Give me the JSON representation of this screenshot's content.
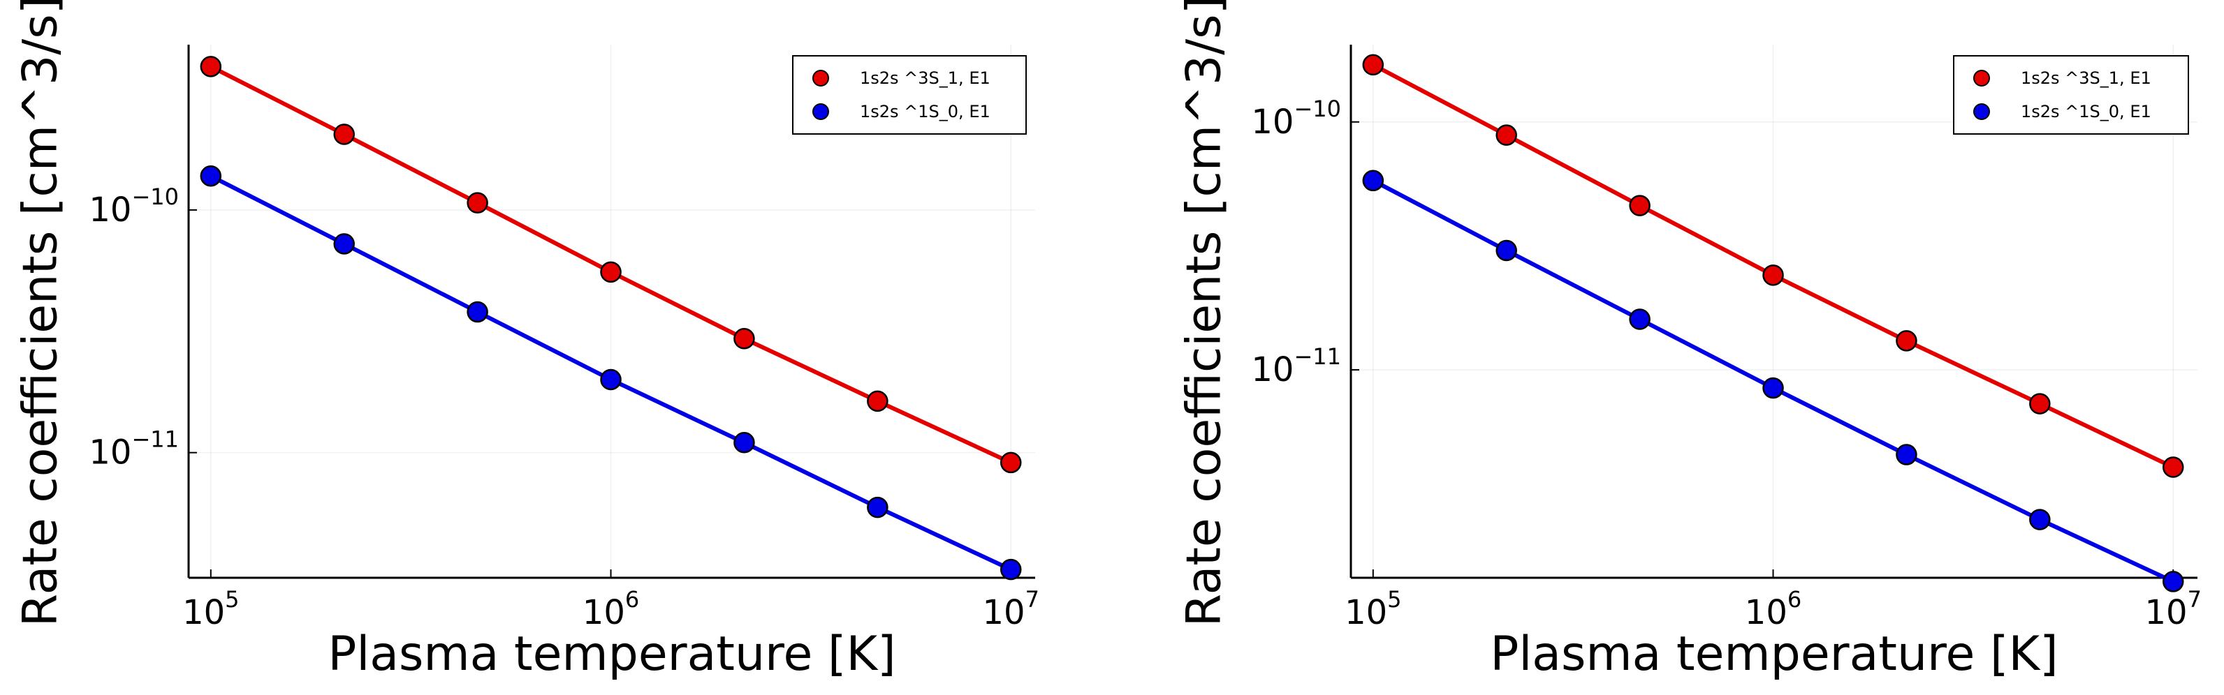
{
  "chart_data": [
    {
      "type": "line",
      "scale": {
        "x": "log",
        "y": "log"
      },
      "title": "",
      "xlabel": "Plasma temperature [K]",
      "ylabel": "Rate coefficients [cm^3/s]",
      "xlim": [
        88000,
        11500000
      ],
      "ylim": [
        3.05e-12,
        4.8e-10
      ],
      "x_ticks": [
        {
          "value": 100000,
          "base": "10",
          "exp": "5"
        },
        {
          "value": 1000000,
          "base": "10",
          "exp": "6"
        },
        {
          "value": 10000000,
          "base": "10",
          "exp": "7"
        }
      ],
      "y_ticks": [
        {
          "value": 1e-10,
          "base": "10",
          "exp": "−10"
        },
        {
          "value": 1e-11,
          "base": "10",
          "exp": "−11"
        }
      ],
      "grid": true,
      "legend_position": "top-right",
      "x": [
        100000,
        215443,
        464159,
        1000000,
        2154435,
        4641589,
        10000000
      ],
      "series": [
        {
          "name": "1s2s ^3S_1, E1",
          "color": "#e50000",
          "values": [
            3.9e-10,
            2.05e-10,
            1.07e-10,
            5.55e-11,
            2.95e-11,
            1.63e-11,
            9.1e-12
          ]
        },
        {
          "name": "1s2s ^1S_0, E1",
          "color": "#0000e6",
          "values": [
            1.38e-10,
            7.25e-11,
            3.8e-11,
            2e-11,
            1.1e-11,
            5.95e-12,
            3.3e-12
          ]
        }
      ]
    },
    {
      "type": "line",
      "scale": {
        "x": "log",
        "y": "log"
      },
      "title": "",
      "xlabel": "Plasma temperature [K]",
      "ylabel": "Rate coefficients [cm^3/s]",
      "xlim": [
        88000,
        11500000
      ],
      "ylim": [
        1.45e-12,
        2.05e-10
      ],
      "x_ticks": [
        {
          "value": 100000,
          "base": "10",
          "exp": "5"
        },
        {
          "value": 1000000,
          "base": "10",
          "exp": "6"
        },
        {
          "value": 10000000,
          "base": "10",
          "exp": "7"
        }
      ],
      "y_ticks": [
        {
          "value": 1e-10,
          "base": "10",
          "exp": "−10"
        },
        {
          "value": 1e-11,
          "base": "10",
          "exp": "−11"
        }
      ],
      "grid": true,
      "legend_position": "top-right",
      "x": [
        100000,
        215443,
        464159,
        1000000,
        2154435,
        4641589,
        10000000
      ],
      "series": [
        {
          "name": "1s2s ^3S_1, E1",
          "color": "#e50000",
          "values": [
            1.7e-10,
            8.85e-11,
            4.6e-11,
            2.41e-11,
            1.31e-11,
            7.3e-12,
            4.05e-12
          ]
        },
        {
          "name": "1s2s ^1S_0, E1",
          "color": "#0000e6",
          "values": [
            5.8e-11,
            3.03e-11,
            1.6e-11,
            8.45e-12,
            4.55e-12,
            2.49e-12,
            1.4e-12
          ]
        }
      ]
    }
  ]
}
